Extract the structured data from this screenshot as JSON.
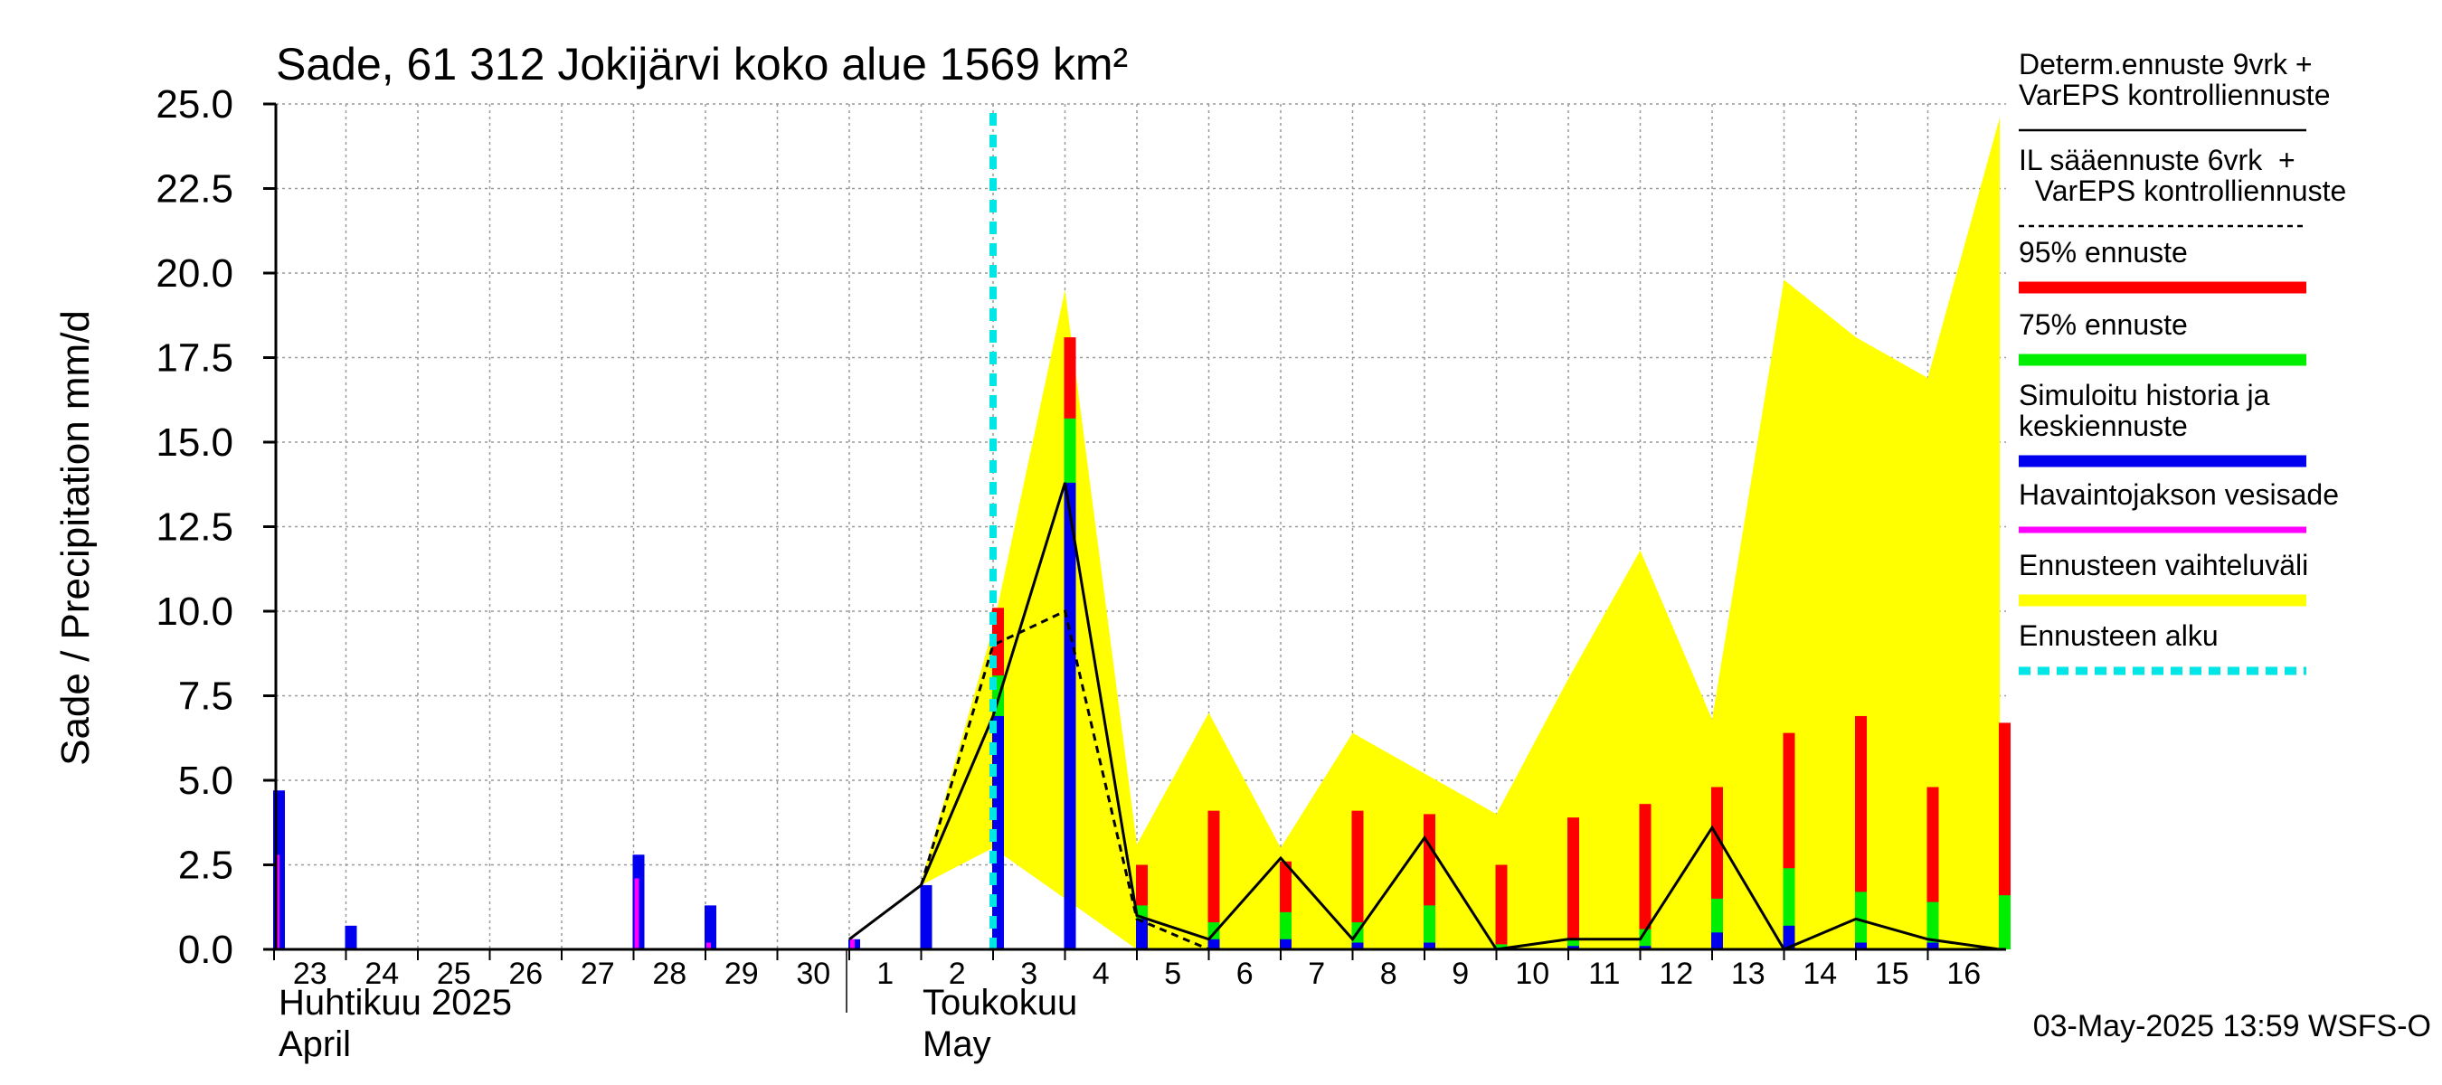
{
  "chart_data": {
    "type": "bar",
    "title": "Sade, 61 312 Jokijärvi koko alue 1569 km²",
    "ylabel": "Sade / Precipitation   mm/d",
    "ylim": [
      0,
      25
    ],
    "yticks": [
      "0.0",
      "2.5",
      "5.0",
      "7.5",
      "10.0",
      "12.5",
      "15.0",
      "17.5",
      "20.0",
      "22.5",
      "25.0"
    ],
    "day_labels": [
      "23",
      "24",
      "25",
      "26",
      "27",
      "28",
      "29",
      "30",
      "1",
      "2",
      "3",
      "4",
      "5",
      "6",
      "7",
      "8",
      "9",
      "10",
      "11",
      "12",
      "13",
      "14",
      "15",
      "16"
    ],
    "month_labels": {
      "april_fi": "Huhtikuu  2025",
      "april_en": "April",
      "may_fi": "Toukokuu",
      "may_en": "May"
    },
    "forecast_start_day": 10.0,
    "x_units": "days from 23 April 2025",
    "history_simulated": [
      {
        "x": 0.0,
        "v": 4.7
      },
      {
        "x": 1.0,
        "v": 0.7
      },
      {
        "x": 5.0,
        "v": 2.8
      },
      {
        "x": 6.0,
        "v": 1.3
      },
      {
        "x": 8.0,
        "v": 0.3
      },
      {
        "x": 9.0,
        "v": 1.9
      },
      {
        "x": 10.0,
        "v": 6.9
      },
      {
        "x": 11.0,
        "v": 13.8
      }
    ],
    "history_observed": [
      {
        "x": 0.0,
        "v": 2.8
      },
      {
        "x": 5.0,
        "v": 2.1
      },
      {
        "x": 6.0,
        "v": 0.2
      },
      {
        "x": 8.0,
        "v": 0.3
      }
    ],
    "forecast_bars": [
      {
        "x": 10.0,
        "p95": 10.1,
        "p75": 8.1,
        "mean": 6.9
      },
      {
        "x": 11.0,
        "p95": 18.1,
        "p75": 15.7,
        "mean": 13.8
      },
      {
        "x": 12.0,
        "p95": 2.5,
        "p75": 1.3,
        "mean": 0.9
      },
      {
        "x": 13.0,
        "p95": 4.1,
        "p75": 0.8,
        "mean": 0.3
      },
      {
        "x": 14.0,
        "p95": 2.6,
        "p75": 1.1,
        "mean": 0.3
      },
      {
        "x": 15.0,
        "p95": 4.1,
        "p75": 0.8,
        "mean": 0.2
      },
      {
        "x": 16.0,
        "p95": 4.0,
        "p75": 1.3,
        "mean": 0.2
      },
      {
        "x": 17.0,
        "p95": 2.5,
        "p75": 0.15,
        "mean": 0.05
      },
      {
        "x": 18.0,
        "p95": 3.9,
        "p75": 0.3,
        "mean": 0.1
      },
      {
        "x": 19.0,
        "p95": 4.3,
        "p75": 0.6,
        "mean": 0.1
      },
      {
        "x": 20.0,
        "p95": 4.8,
        "p75": 1.5,
        "mean": 0.5
      },
      {
        "x": 21.0,
        "p95": 6.4,
        "p75": 2.4,
        "mean": 0.7
      },
      {
        "x": 22.0,
        "p95": 6.9,
        "p75": 1.7,
        "mean": 0.2
      },
      {
        "x": 23.0,
        "p95": 4.8,
        "p75": 1.4,
        "mean": 0.2
      },
      {
        "x": 24.0,
        "p95": 6.7,
        "p75": 1.6,
        "mean": 0.0
      }
    ],
    "range_band": {
      "x": [
        9,
        10,
        11,
        12,
        13,
        14,
        15,
        16,
        17,
        18,
        19,
        20,
        21,
        22,
        23,
        24
      ],
      "upper": [
        2.0,
        9.5,
        19.5,
        3.1,
        7.0,
        3.0,
        6.4,
        5.2,
        4.0,
        8.0,
        11.8,
        6.8,
        19.8,
        18.1,
        16.9,
        24.6
      ],
      "lower": [
        1.9,
        3.0,
        1.5,
        0.0,
        0.0,
        0.0,
        0.0,
        0.0,
        0.0,
        0.0,
        0.0,
        0.0,
        0.0,
        0.0,
        0.0,
        0.0
      ]
    },
    "determ_line": {
      "x": [
        8,
        9,
        10,
        11,
        12,
        13,
        14,
        15,
        16,
        17,
        18,
        19,
        20,
        21,
        22,
        23,
        24
      ],
      "y": [
        0.3,
        1.9,
        6.9,
        13.8,
        1.0,
        0.3,
        2.7,
        0.3,
        3.3,
        0.0,
        0.3,
        0.3,
        3.6,
        0.0,
        0.9,
        0.3,
        0.0
      ]
    },
    "il_line": {
      "x": [
        9,
        10,
        11,
        12,
        13,
        14,
        15,
        16,
        17
      ],
      "y": [
        1.9,
        9.0,
        10.0,
        0.9,
        0.0,
        0.0,
        0.0,
        0.0,
        0.0
      ]
    },
    "legend": [
      {
        "label_lines": [
          "Determ.ennuste 9vrk +",
          "VarEPS kontrolliennuste"
        ],
        "style": "solid-thin",
        "color": "#000000"
      },
      {
        "label_lines": [
          "IL sääennuste 6vrk  +",
          "  VarEPS kontrolliennuste"
        ],
        "style": "dashed-thin",
        "color": "#000000"
      },
      {
        "label_lines": [
          "95% ennuste"
        ],
        "style": "thick",
        "color": "#ff0000"
      },
      {
        "label_lines": [
          "75% ennuste"
        ],
        "style": "thick",
        "color": "#00ee00"
      },
      {
        "label_lines": [
          "Simuloitu historia ja",
          "keskiennuste"
        ],
        "style": "thick",
        "color": "#0000ee"
      },
      {
        "label_lines": [
          "Havaintojakson vesisade"
        ],
        "style": "medium",
        "color": "#ff00ff"
      },
      {
        "label_lines": [
          "Ennusteen vaihteluväli"
        ],
        "style": "thick",
        "color": "#ffff00"
      },
      {
        "label_lines": [
          "Ennusteen alku"
        ],
        "style": "dashed-thick",
        "color": "#00e5e5"
      }
    ],
    "legend_placement": "right",
    "grid": true,
    "colors": {
      "p95": "#ff0000",
      "p75": "#00ee00",
      "mean": "#0000ee",
      "observed": "#ff00ff",
      "band": "#ffff00",
      "forecast_start": "#00e5e5"
    }
  },
  "footer": {
    "timestamp": "03-May-2025 13:59 WSFS-O"
  }
}
